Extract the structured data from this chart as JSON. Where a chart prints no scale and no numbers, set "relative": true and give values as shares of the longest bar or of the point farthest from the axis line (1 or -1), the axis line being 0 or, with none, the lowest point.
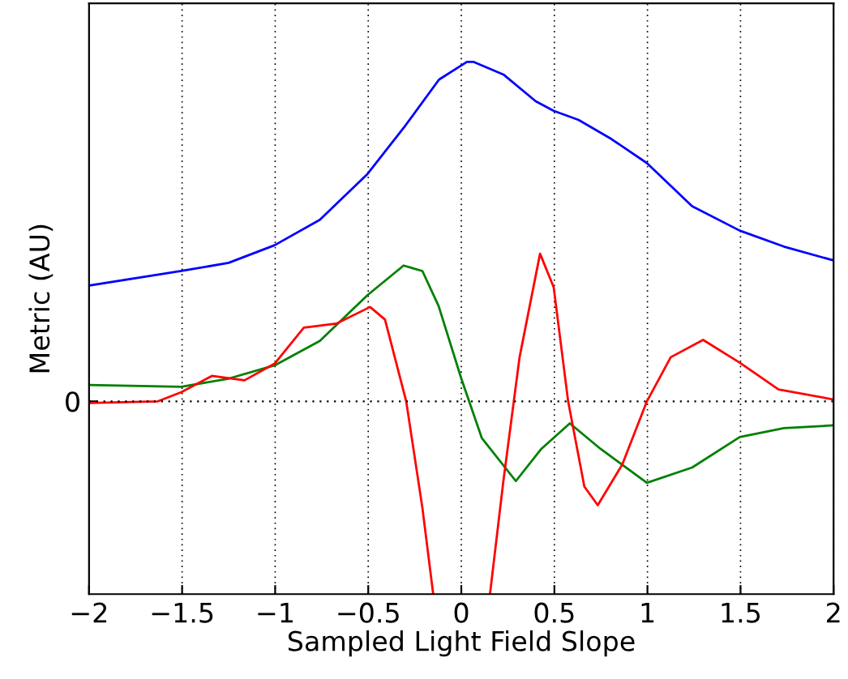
{
  "chart_data": {
    "type": "line",
    "relative": true,
    "xlabel": "Sampled Light Field Slope",
    "ylabel": "Metric (AU)",
    "xlim": [
      -2,
      2
    ],
    "xticks": [
      -2,
      -1.5,
      -1,
      -0.5,
      0,
      0.5,
      1,
      1.5,
      2
    ],
    "grid": "x",
    "line_style": "solid",
    "ref_lines": [
      {
        "axis": "y",
        "value": 0,
        "label": "0",
        "line_style": "dotted",
        "color": "#000000"
      }
    ],
    "series": [
      {
        "color": "#0000ff",
        "x": [
          -2,
          -1.504,
          -1.25,
          -1.003,
          -0.76,
          -0.504,
          -0.3,
          -0.12,
          0.03,
          0.067,
          0.226,
          0.4,
          0.496,
          0.63,
          0.806,
          0.997,
          1.24,
          1.496,
          1.733,
          1.994
        ],
        "values": [
          0.341,
          0.384,
          0.408,
          0.46,
          0.535,
          0.67,
          0.813,
          0.948,
          1.0,
          1.0,
          0.963,
          0.884,
          0.856,
          0.829,
          0.773,
          0.702,
          0.575,
          0.503,
          0.456,
          0.416
        ]
      },
      {
        "color": "#008000",
        "x": [
          -2,
          -1.504,
          -1.25,
          -1.003,
          -0.76,
          -0.504,
          -0.31,
          -0.209,
          -0.122,
          0,
          0.11,
          0.293,
          0.43,
          0.583,
          0.748,
          0.997,
          1.24,
          1.496,
          1.733,
          1.994
        ],
        "values": [
          0.048,
          0.043,
          0.067,
          0.106,
          0.178,
          0.313,
          0.4,
          0.384,
          0.281,
          0.067,
          -0.108,
          -0.235,
          -0.14,
          -0.065,
          -0.14,
          -0.24,
          -0.195,
          -0.105,
          -0.079,
          -0.071
        ]
      },
      {
        "color": "#ff0000",
        "x": [
          -2,
          -1.63,
          -1.504,
          -1.34,
          -1.165,
          -1.003,
          -0.846,
          -0.672,
          -0.49,
          -0.41,
          -0.296,
          -0.209,
          -0.151,
          0,
          0.154,
          0.226,
          0.313,
          0.423,
          0.496,
          0.574,
          0.661,
          0.733,
          0.864,
          0.997,
          1.125,
          1.299,
          1.496,
          1.704,
          1.994
        ],
        "values": [
          -0.005,
          0,
          0.027,
          0.075,
          0.062,
          0.111,
          0.217,
          0.229,
          0.278,
          0.241,
          0,
          -0.314,
          -0.568,
          null,
          -0.568,
          -0.235,
          0.13,
          0.435,
          0.337,
          0,
          -0.251,
          -0.306,
          -0.187,
          0,
          0.13,
          0.181,
          0.114,
          0.035,
          0.006
        ]
      }
    ]
  }
}
